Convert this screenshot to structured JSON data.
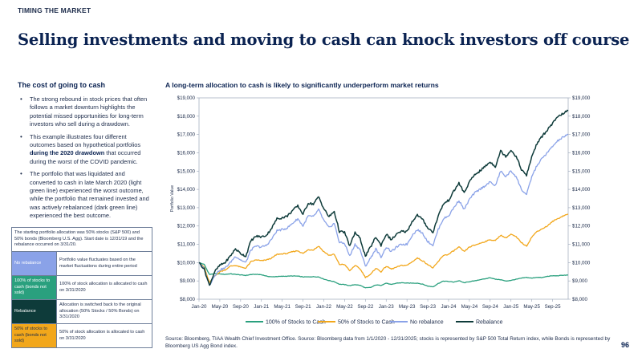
{
  "header": {
    "eyebrow": "TIMING THE MARKET",
    "title": "Selling investments and moving to cash can knock investors off course"
  },
  "left": {
    "heading": "The cost of going to cash",
    "bullets": [
      {
        "text": "The strong rebound in stock prices that often follows a market downturn highlights the potential missed opportunities for long-term investors who sell during a drawdown."
      },
      {
        "pre": "This example illustrates four different outcomes based on hypothetical portfolios ",
        "bold": "during the 2020 drawdown",
        "post": " that occurred during the worst of the COVID pandemic."
      },
      {
        "text": "The portfolio that was liquidated and converted to cash in late March 2020 (light green line) experienced the worst outcome, while the portfolio that remained invested and was actively rebalanced (dark green line) experienced the best outcome."
      }
    ],
    "table": {
      "intro": "The starting portfolio allocation was 50% stocks (S&P 500) and 50% bonds (Bloomberg U.S. Agg). Start date is 12/31/19 and the rebalance occurred on 3/31/20.",
      "rows": [
        {
          "name": "No rebalance",
          "desc": "Portfolio value fluctuates based on the market fluctuations during entire period",
          "color": "#8aa2e8"
        },
        {
          "name": "100% of stocks to cash (bonds not sold)",
          "desc": "100% of stock allocation is allocated to cash on 3/31/2020",
          "color": "#2aa07e"
        },
        {
          "name": "Rebalance",
          "desc": "Allocation is switched back to the original allocation (50% Stocks / 50% Bonds) on 3/31/2020",
          "color": "#0e3b3a"
        },
        {
          "name": "50% of stocks to cash (bonds not sold)",
          "desc": "50% of stock allocation is allocated to cash on 3/31/2020",
          "color": "#f2a71b"
        }
      ]
    }
  },
  "chart_title": "A long-term allocation to cash is likely to significantly underperform market returns",
  "chart_data": {
    "type": "line",
    "title": "A long-term allocation to cash is likely to significantly underperform market returns",
    "ylabel": "Portfolio Value",
    "ylim": [
      8000,
      19000
    ],
    "yticks": [
      8000,
      9000,
      10000,
      11000,
      12000,
      13000,
      14000,
      15000,
      16000,
      17000,
      18000,
      19000
    ],
    "ytick_labels": [
      "$8,000",
      "$9,000",
      "$10,000",
      "$11,000",
      "$12,000",
      "$13,000",
      "$14,000",
      "$15,000",
      "$16,000",
      "$17,000",
      "$18,000",
      "$19,000"
    ],
    "xtick_labels": [
      "Jan-20",
      "May-20",
      "Sep-20",
      "Jan-21",
      "May-21",
      "Sep-21",
      "Jan-22",
      "May-22",
      "Sep-22",
      "Jan-23",
      "May-23",
      "Sep-23",
      "Jan-24",
      "May-24",
      "Sep-24",
      "Jan-25",
      "May-25",
      "Sep-25"
    ],
    "x": [
      "Jan-20",
      "Feb-20",
      "Mar-20",
      "Apr-20",
      "May-20",
      "Jun-20",
      "Jul-20",
      "Aug-20",
      "Sep-20",
      "Oct-20",
      "Nov-20",
      "Dec-20",
      "Jan-21",
      "Feb-21",
      "Mar-21",
      "Apr-21",
      "May-21",
      "Jun-21",
      "Jul-21",
      "Aug-21",
      "Sep-21",
      "Oct-21",
      "Nov-21",
      "Dec-21",
      "Jan-22",
      "Feb-22",
      "Mar-22",
      "Apr-22",
      "May-22",
      "Jun-22",
      "Jul-22",
      "Aug-22",
      "Sep-22",
      "Oct-22",
      "Nov-22",
      "Dec-22",
      "Jan-23",
      "Feb-23",
      "Mar-23",
      "Apr-23",
      "May-23",
      "Jun-23",
      "Jul-23",
      "Aug-23",
      "Sep-23",
      "Oct-23",
      "Nov-23",
      "Dec-23",
      "Jan-24",
      "Feb-24",
      "Mar-24",
      "Apr-24",
      "May-24",
      "Jun-24",
      "Jul-24",
      "Aug-24",
      "Sep-24",
      "Oct-24",
      "Nov-24",
      "Dec-24",
      "Jan-25",
      "Feb-25",
      "Mar-25",
      "Apr-25",
      "May-25",
      "Jun-25",
      "Jul-25",
      "Aug-25",
      "Sep-25",
      "Oct-25",
      "Nov-25",
      "Dec-25"
    ],
    "legend_position": "bottom",
    "grid": false,
    "series": [
      {
        "name": "100% of Stocks to Cash",
        "color": "#2aa07e",
        "values": [
          10000,
          9900,
          9350,
          9400,
          9380,
          9360,
          9390,
          9360,
          9330,
          9300,
          9350,
          9360,
          9340,
          9260,
          9220,
          9240,
          9250,
          9260,
          9270,
          9260,
          9220,
          9220,
          9230,
          9220,
          9100,
          9020,
          8960,
          8820,
          8800,
          8740,
          8800,
          8760,
          8620,
          8640,
          8780,
          8760,
          8880,
          8800,
          8880,
          8900,
          8880,
          8880,
          8880,
          8820,
          8720,
          8680,
          8860,
          8990,
          8970,
          8940,
          9010,
          8900,
          8960,
          9000,
          9070,
          9110,
          9180,
          9090,
          9070,
          8990,
          9030,
          9090,
          9150,
          9190,
          9150,
          9200,
          9180,
          9250,
          9280,
          9280,
          9310,
          9320
        ]
      },
      {
        "name": "50% of Stocks to Cash",
        "color": "#f2a71b",
        "values": [
          10000,
          9750,
          8900,
          9250,
          9500,
          9600,
          9800,
          9850,
          9750,
          9700,
          10050,
          10150,
          10100,
          10150,
          10250,
          10450,
          10480,
          10500,
          10600,
          10650,
          10500,
          10700,
          10700,
          10900,
          10600,
          10400,
          10450,
          9900,
          9900,
          9550,
          9850,
          9650,
          9200,
          9350,
          9700,
          9500,
          9800,
          9650,
          9750,
          9850,
          9850,
          10050,
          10250,
          10100,
          9900,
          9700,
          10050,
          10400,
          10450,
          10650,
          10850,
          10600,
          10850,
          10950,
          11050,
          11150,
          11250,
          11200,
          11500,
          11350,
          11550,
          11400,
          11100,
          10900,
          11400,
          11700,
          11850,
          12000,
          12250,
          12400,
          12550,
          12650
        ]
      },
      {
        "name": "No rebalance",
        "color": "#8aa2e8",
        "values": [
          10000,
          9650,
          8750,
          9300,
          9600,
          9700,
          10000,
          10350,
          10150,
          10000,
          10700,
          10900,
          10850,
          10950,
          11300,
          11750,
          11800,
          11900,
          12150,
          12400,
          12000,
          12550,
          12500,
          12900,
          12300,
          11900,
          12150,
          11100,
          11050,
          10350,
          11000,
          10700,
          9800,
          10250,
          10750,
          10300,
          10850,
          10600,
          10850,
          11000,
          11000,
          11500,
          11800,
          11600,
          11150,
          10950,
          11800,
          12400,
          12550,
          13000,
          13400,
          12900,
          13450,
          13800,
          14000,
          14200,
          14400,
          14200,
          15000,
          14700,
          15000,
          14700,
          14000,
          13700,
          14700,
          15300,
          15700,
          16000,
          16350,
          16650,
          16850,
          17000
        ]
      },
      {
        "name": "Rebalance",
        "color": "#0e3b3a",
        "values": [
          10000,
          9650,
          8750,
          9500,
          9850,
          10000,
          10350,
          10750,
          10500,
          10350,
          11200,
          11450,
          11400,
          11500,
          11900,
          12400,
          12450,
          12550,
          12850,
          13100,
          12650,
          13250,
          13200,
          13600,
          12950,
          12500,
          12800,
          11700,
          11650,
          10900,
          11650,
          11300,
          10350,
          10850,
          11400,
          10950,
          11550,
          11250,
          11550,
          11700,
          11700,
          12250,
          12600,
          12350,
          11900,
          11650,
          12550,
          13200,
          13400,
          13900,
          14350,
          13800,
          14400,
          14800,
          15000,
          15250,
          15500,
          15250,
          16100,
          15800,
          16150,
          15800,
          15100,
          14750,
          15800,
          16500,
          16900,
          17250,
          17600,
          17950,
          18150,
          18300
        ]
      }
    ]
  },
  "footer": {
    "source": "Source: Bloomberg, TIAA Wealth Chief Investment Office. Source: Bloomberg data from 1/1/2020 - 12/31/2025; stocks is represented by S&P 500 Total Return index, while Bonds is represented by Bloomberg US Agg Bond index.",
    "page_number": "96"
  }
}
